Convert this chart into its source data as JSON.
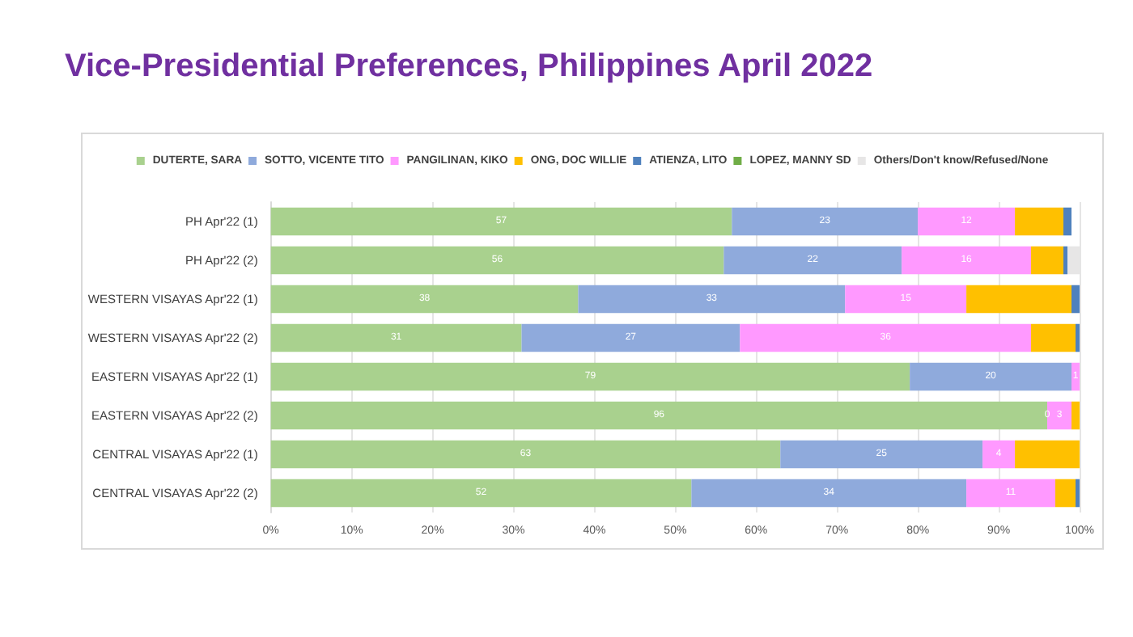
{
  "chart_data": {
    "type": "bar",
    "orientation": "horizontal",
    "stacked": true,
    "title": "Vice-Presidential Preferences, Philippines April 2022",
    "categories": [
      "PH Apr'22 (1)",
      "PH Apr'22 (2)",
      "WESTERN VISAYAS Apr'22 (1)",
      "WESTERN VISAYAS Apr'22 (2)",
      "EASTERN VISAYAS Apr'22 (1)",
      "EASTERN VISAYAS Apr'22 (2)",
      "CENTRAL VISAYAS Apr'22 (1)",
      "CENTRAL VISAYAS Apr'22 (2)"
    ],
    "series": [
      {
        "name": "DUTERTE, SARA",
        "color": "#a9d18e",
        "values": [
          57,
          56,
          38,
          31,
          79,
          96,
          63,
          52
        ],
        "value_labels": [
          "57",
          "56",
          "38",
          "31",
          "79",
          "96",
          "63",
          "52"
        ]
      },
      {
        "name": "SOTTO, VICENTE TITO",
        "color": "#8faadc",
        "values": [
          23,
          22,
          33,
          27,
          20,
          0,
          25,
          34
        ],
        "value_labels": [
          "23",
          "22",
          "33",
          "27",
          "20",
          "0",
          "25",
          "34"
        ]
      },
      {
        "name": "PANGILINAN, KIKO",
        "color": "#ff99ff",
        "values": [
          12,
          16,
          15,
          36,
          1,
          3,
          4,
          11
        ],
        "value_labels": [
          "12",
          "16",
          "15",
          "36",
          "1",
          "3",
          "4",
          "11"
        ]
      },
      {
        "name": "ONG, DOC WILLIE",
        "color": "#ffc000",
        "values": [
          6,
          4,
          13,
          5.5,
          0,
          1,
          8,
          2.5
        ]
      },
      {
        "name": "ATIENZA, LITO",
        "color": "#4f81bd",
        "values": [
          1,
          0.5,
          1,
          0.5,
          0,
          0,
          0,
          0.5
        ]
      },
      {
        "name": "LOPEZ, MANNY SD",
        "color": "#70ad47",
        "values": [
          0,
          0,
          0,
          0,
          0,
          0,
          0,
          0
        ]
      },
      {
        "name": "Others/Don't know/Refused/None",
        "color": "#e7e6e6",
        "values": [
          0,
          1.5,
          0,
          0,
          0,
          0,
          0,
          0
        ]
      }
    ],
    "xlim": [
      0,
      100
    ],
    "xticks": [
      {
        "value": 0,
        "label": "0%"
      },
      {
        "value": 10,
        "label": "10%"
      },
      {
        "value": 20,
        "label": "20%"
      },
      {
        "value": 30,
        "label": "30%"
      },
      {
        "value": 40,
        "label": "40%"
      },
      {
        "value": 50,
        "label": "50%"
      },
      {
        "value": 60,
        "label": "60%"
      },
      {
        "value": 70,
        "label": "70%"
      },
      {
        "value": 80,
        "label": "80%"
      },
      {
        "value": 90,
        "label": "90%"
      },
      {
        "value": 100,
        "label": "100%"
      }
    ],
    "grid": "x",
    "legend": "top"
  }
}
